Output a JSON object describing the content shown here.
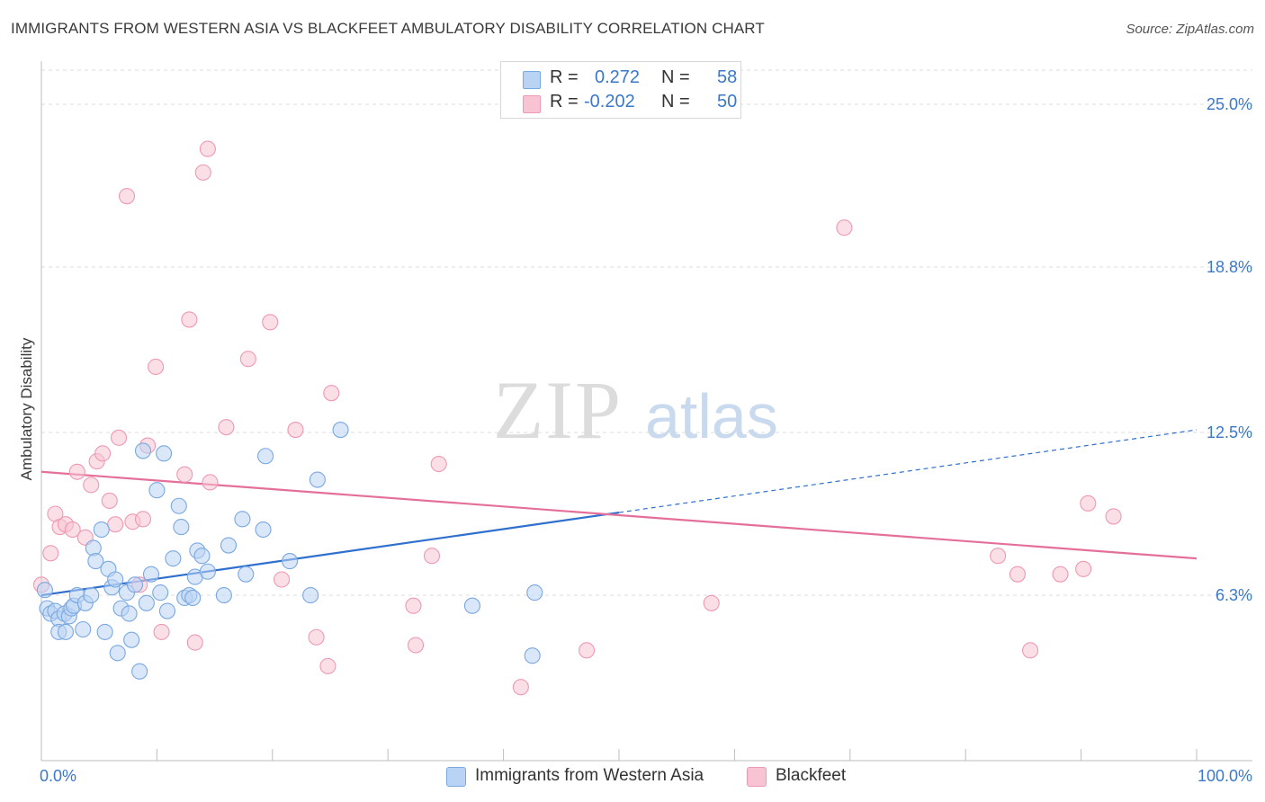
{
  "header": {
    "title": "IMMIGRANTS FROM WESTERN ASIA VS BLACKFEET AMBULATORY DISABILITY CORRELATION CHART",
    "source": "Source: ZipAtlas.com"
  },
  "watermark": {
    "zip": "ZIP",
    "atlas": "atlas"
  },
  "legend": {
    "rows": [
      {
        "r_label": "R =",
        "r_value": "0.272",
        "n_label": "N =",
        "n_value": "58"
      },
      {
        "r_label": "R =",
        "r_value": "-0.202",
        "n_label": "N =",
        "n_value": "50"
      }
    ]
  },
  "bottom_legend": {
    "series1": "Immigrants from Western Asia",
    "series2": "Blackfeet"
  },
  "colors": {
    "blue_fill": "#b9d3f4",
    "blue_stroke": "#7aa8e0",
    "blue_line": "#2f6fce",
    "pink_fill": "#f8c4d4",
    "pink_stroke": "#ee99b4",
    "pink_line": "#e4709a",
    "tick_text": "#3b78c9"
  },
  "chart_data": {
    "type": "scatter",
    "title": "IMMIGRANTS FROM WESTERN ASIA VS BLACKFEET AMBULATORY DISABILITY CORRELATION CHART",
    "xlabel": "",
    "ylabel": "Ambulatory Disability",
    "xlim": [
      0,
      100
    ],
    "ylim": [
      0,
      26.3
    ],
    "x_tick_labels": [
      "0.0%",
      "100.0%"
    ],
    "y_ticks": [
      6.3,
      12.5,
      18.8,
      25.0
    ],
    "y_tick_labels": [
      "6.3%",
      "12.5%",
      "18.8%",
      "25.0%"
    ],
    "grid": true,
    "legend_position": "top-center",
    "series": [
      {
        "name": "Immigrants from Western Asia",
        "r": 0.272,
        "n": 58,
        "trend": {
          "x0": 0,
          "y0": 6.3,
          "x1": 100,
          "y1": 12.6,
          "solid_until_x": 50
        },
        "points": [
          [
            0.3,
            6.5
          ],
          [
            0.5,
            5.8
          ],
          [
            0.8,
            5.6
          ],
          [
            1.2,
            5.7
          ],
          [
            1.5,
            5.4
          ],
          [
            1.5,
            4.9
          ],
          [
            2.0,
            5.6
          ],
          [
            2.1,
            4.9
          ],
          [
            2.4,
            5.5
          ],
          [
            2.6,
            5.8
          ],
          [
            2.8,
            5.9
          ],
          [
            3.1,
            6.3
          ],
          [
            3.6,
            5.0
          ],
          [
            3.8,
            6.0
          ],
          [
            4.3,
            6.3
          ],
          [
            4.5,
            8.1
          ],
          [
            4.7,
            7.6
          ],
          [
            5.2,
            8.8
          ],
          [
            5.5,
            4.9
          ],
          [
            5.8,
            7.3
          ],
          [
            6.1,
            6.6
          ],
          [
            6.4,
            6.9
          ],
          [
            6.6,
            4.1
          ],
          [
            6.9,
            5.8
          ],
          [
            7.4,
            6.4
          ],
          [
            7.6,
            5.6
          ],
          [
            7.8,
            4.6
          ],
          [
            8.1,
            6.7
          ],
          [
            8.5,
            3.4
          ],
          [
            8.8,
            11.8
          ],
          [
            9.1,
            6.0
          ],
          [
            9.5,
            7.1
          ],
          [
            10.0,
            10.3
          ],
          [
            10.3,
            6.4
          ],
          [
            10.6,
            11.7
          ],
          [
            10.9,
            5.7
          ],
          [
            11.4,
            7.7
          ],
          [
            11.9,
            9.7
          ],
          [
            12.1,
            8.9
          ],
          [
            12.4,
            6.2
          ],
          [
            12.8,
            6.3
          ],
          [
            13.1,
            6.2
          ],
          [
            13.3,
            7.0
          ],
          [
            13.5,
            8.0
          ],
          [
            13.9,
            7.8
          ],
          [
            14.4,
            7.2
          ],
          [
            15.8,
            6.3
          ],
          [
            16.2,
            8.2
          ],
          [
            17.4,
            9.2
          ],
          [
            17.7,
            7.1
          ],
          [
            19.2,
            8.8
          ],
          [
            19.4,
            11.6
          ],
          [
            21.5,
            7.6
          ],
          [
            23.3,
            6.3
          ],
          [
            23.9,
            10.7
          ],
          [
            25.9,
            12.6
          ],
          [
            37.3,
            5.9
          ],
          [
            42.7,
            6.4
          ],
          [
            42.5,
            4.0
          ]
        ]
      },
      {
        "name": "Blackfeet",
        "r": -0.202,
        "n": 50,
        "trend": {
          "x0": 0,
          "y0": 11.0,
          "x1": 100,
          "y1": 7.7
        },
        "points": [
          [
            0.0,
            6.7
          ],
          [
            0.8,
            7.9
          ],
          [
            1.2,
            9.4
          ],
          [
            1.6,
            8.9
          ],
          [
            2.1,
            9.0
          ],
          [
            2.7,
            8.8
          ],
          [
            3.1,
            11.0
          ],
          [
            3.8,
            8.5
          ],
          [
            4.3,
            10.5
          ],
          [
            4.8,
            11.4
          ],
          [
            5.3,
            11.7
          ],
          [
            5.9,
            9.9
          ],
          [
            6.4,
            9.0
          ],
          [
            6.7,
            12.3
          ],
          [
            7.4,
            21.5
          ],
          [
            7.9,
            9.1
          ],
          [
            8.5,
            6.7
          ],
          [
            8.8,
            9.2
          ],
          [
            9.2,
            12.0
          ],
          [
            9.9,
            15.0
          ],
          [
            10.4,
            4.9
          ],
          [
            12.4,
            10.9
          ],
          [
            12.8,
            16.8
          ],
          [
            13.3,
            4.5
          ],
          [
            14.0,
            22.4
          ],
          [
            14.4,
            23.3
          ],
          [
            14.6,
            10.6
          ],
          [
            16.0,
            12.7
          ],
          [
            17.9,
            15.3
          ],
          [
            19.8,
            16.7
          ],
          [
            20.8,
            6.9
          ],
          [
            22.0,
            12.6
          ],
          [
            23.8,
            4.7
          ],
          [
            24.8,
            3.6
          ],
          [
            25.1,
            14.0
          ],
          [
            32.2,
            5.9
          ],
          [
            32.4,
            4.4
          ],
          [
            33.8,
            7.8
          ],
          [
            34.4,
            11.3
          ],
          [
            41.5,
            2.8
          ],
          [
            47.2,
            4.2
          ],
          [
            69.5,
            20.3
          ],
          [
            82.8,
            7.8
          ],
          [
            84.5,
            7.1
          ],
          [
            85.6,
            4.2
          ],
          [
            88.2,
            7.1
          ],
          [
            90.2,
            7.3
          ],
          [
            90.6,
            9.8
          ],
          [
            92.8,
            9.3
          ],
          [
            58.0,
            6.0
          ]
        ]
      }
    ]
  }
}
